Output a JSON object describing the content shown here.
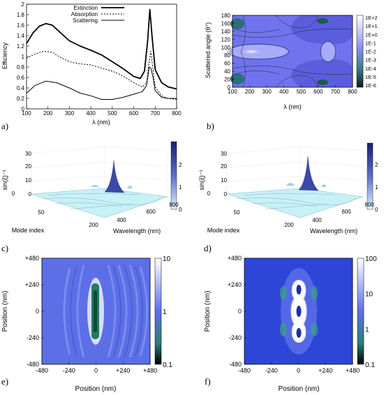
{
  "panels": {
    "a": "a)",
    "b": "b)",
    "c": "c)",
    "d": "d)",
    "e": "e)",
    "f": "f)"
  },
  "chart_data": [
    {
      "id": "a",
      "type": "line",
      "xlabel": "λ (nm)",
      "ylabel": "Efficiency",
      "xlim": [
        100,
        800
      ],
      "ylim": [
        0,
        2
      ],
      "xticks": [
        "100",
        "200",
        "300",
        "400",
        "500",
        "600",
        "700",
        "800"
      ],
      "yticks": [
        "0",
        "0.2",
        "0.4",
        "0.6",
        "0.8",
        "1",
        "1.2",
        "1.4",
        "1.6",
        "1.8",
        "2"
      ],
      "legend_position": "top-center",
      "series": [
        {
          "name": "Extinction",
          "style": "solid-thick",
          "x": [
            100,
            130,
            160,
            190,
            220,
            260,
            300,
            350,
            400,
            450,
            500,
            550,
            600,
            630,
            650,
            665,
            675,
            685,
            700,
            730,
            760,
            800
          ],
          "y": [
            1.25,
            1.45,
            1.58,
            1.63,
            1.6,
            1.45,
            1.3,
            1.2,
            1.12,
            1.03,
            0.9,
            0.77,
            0.62,
            0.58,
            0.72,
            1.3,
            1.9,
            1.4,
            0.75,
            0.5,
            0.42,
            0.38
          ]
        },
        {
          "name": "Absorption",
          "style": "dashed",
          "x": [
            100,
            140,
            180,
            220,
            260,
            300,
            350,
            400,
            450,
            500,
            550,
            600,
            640,
            660,
            670,
            680,
            690,
            700,
            730,
            760,
            800
          ],
          "y": [
            0.97,
            1.05,
            1.1,
            1.08,
            0.98,
            0.9,
            0.86,
            0.84,
            0.78,
            0.72,
            0.63,
            0.5,
            0.42,
            0.5,
            0.85,
            1.1,
            0.75,
            0.42,
            0.25,
            0.2,
            0.18
          ]
        },
        {
          "name": "Scattering",
          "style": "solid",
          "x": [
            100,
            140,
            190,
            240,
            300,
            350,
            400,
            450,
            500,
            550,
            600,
            640,
            660,
            672,
            680,
            690,
            700,
            730,
            760,
            800
          ],
          "y": [
            0.3,
            0.45,
            0.53,
            0.5,
            0.4,
            0.3,
            0.25,
            0.18,
            0.18,
            0.22,
            0.28,
            0.33,
            0.45,
            0.8,
            0.78,
            0.6,
            0.35,
            0.22,
            0.2,
            0.2
          ]
        }
      ]
    },
    {
      "id": "b",
      "type": "heatmap",
      "xlabel": "λ (nm)",
      "ylabel": "Scattered angle (θ°)",
      "xlim": [
        100,
        800
      ],
      "ylim": [
        0,
        180
      ],
      "xticks": [
        "100",
        "200",
        "300",
        "400",
        "500",
        "600",
        "700",
        "800"
      ],
      "yticks": [
        "0",
        "20",
        "40",
        "60",
        "80",
        "100",
        "120",
        "140",
        "160",
        "180"
      ],
      "colorbar": [
        "1E+2",
        "1E+1",
        "1E+0",
        "1E-1",
        "1E-2",
        "1E-3",
        "1E-4",
        "1E-5",
        "1E-6"
      ],
      "colors": {
        "high": "#ffffff",
        "mid": "#6f74ee",
        "low": "#0b4a2e"
      }
    },
    {
      "id": "c",
      "type": "surface",
      "xlabel": "Wavelength (nm)",
      "ylabel": "Mode index",
      "zlabel": "sin(ξ)⁻¹",
      "xticks": [
        "200",
        "400",
        "600",
        "800"
      ],
      "yticks": [
        "0",
        "50"
      ],
      "zticks": [
        "0",
        "10",
        "20",
        "30"
      ],
      "colorbar": [
        "0",
        "1",
        "2"
      ],
      "peak": {
        "wavelength": 680,
        "value": 2.8
      }
    },
    {
      "id": "d",
      "type": "surface",
      "xlabel": "Wavelength (nm)",
      "ylabel": "Mode index",
      "zlabel": "sin(ξ)⁻¹",
      "xticks": [
        "200",
        "400",
        "600",
        "800"
      ],
      "yticks": [
        "0",
        "50"
      ],
      "zticks": [
        "0",
        "10",
        "20",
        "30"
      ],
      "colorbar": [
        "0",
        "1",
        "2"
      ],
      "peak": {
        "wavelength": 680,
        "value": 2.9
      }
    },
    {
      "id": "e",
      "type": "heatmap",
      "xlabel": "Position (nm)",
      "ylabel": "Position (nm)",
      "xticks": [
        "-480",
        "-240",
        "0",
        "+240",
        "+480"
      ],
      "yticks": [
        "+480",
        "+240",
        "0",
        "-240",
        "-480"
      ],
      "colorbar": [
        "10",
        "1",
        "0.1"
      ],
      "colors": {
        "field": "#5c6fe6",
        "low": "#0d4d2d",
        "high": "#ffffff"
      }
    },
    {
      "id": "f",
      "type": "heatmap",
      "xlabel": "Position (nm)",
      "ylabel": "Position (nm)",
      "xticks": [
        "-480",
        "-240",
        "0",
        "+240",
        "+480"
      ],
      "yticks": [
        "+480",
        "+240",
        "0",
        "-240",
        "-480"
      ],
      "colorbar": [
        "100",
        "10",
        "1",
        "0.1"
      ],
      "colors": {
        "field": "#2e46d8",
        "low": "#0d4d2d",
        "high": "#ffffff"
      }
    }
  ]
}
